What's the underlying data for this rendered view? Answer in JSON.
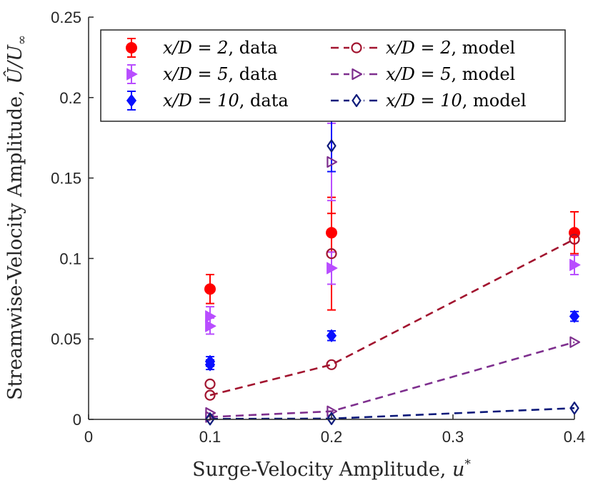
{
  "chart_data": {
    "type": "scatter",
    "xlabel": "Surge-Velocity Amplitude, u*",
    "xlabel_parts": {
      "text": "Surge-Velocity Amplitude, ",
      "symbol": "u",
      "sup": "*"
    },
    "ylabel": "Streamwise-Velocity Amplitude, Û/U∞",
    "ylabel_parts": {
      "text": "Streamwise-Velocity Amplitude, ",
      "symbol": "Û/U",
      "sub": "∞"
    },
    "xlim": [
      0,
      0.4
    ],
    "ylim": [
      0,
      0.25
    ],
    "xticks": [
      0,
      0.1,
      0.2,
      0.3,
      0.4
    ],
    "xtick_labels": [
      "0",
      "0.1",
      "0.2",
      "0.3",
      "0.4"
    ],
    "yticks": [
      0,
      0.05,
      0.1,
      0.15,
      0.2,
      0.25
    ],
    "ytick_labels": [
      "0",
      "0.05",
      "0.1",
      "0.15",
      "0.2",
      "0.25"
    ],
    "grid": false,
    "legend_position": "top-right",
    "series": [
      {
        "name": "x/D = 2, data",
        "legend_math": "x/D = 2",
        "legend_suffix": ", data",
        "kind": "data",
        "marker": "circle-filled",
        "color": "#ff0000",
        "points": [
          {
            "x": 0.1,
            "y": 0.081,
            "err": 0.009
          },
          {
            "x": 0.2,
            "y": 0.116,
            "err": 0.012
          },
          {
            "x": 0.4,
            "y": 0.116,
            "err": 0.013
          }
        ]
      },
      {
        "name": "x/D = 5, data",
        "legend_math": "x/D = 5",
        "legend_suffix": ", data",
        "kind": "data",
        "marker": "triangle-right-filled",
        "color": "#b84dff",
        "points": [
          {
            "x": 0.1,
            "y": 0.064,
            "err": 0.006
          },
          {
            "x": 0.1,
            "y": 0.058,
            "err": 0.005
          },
          {
            "x": 0.2,
            "y": 0.094,
            "err": 0.01
          },
          {
            "x": 0.4,
            "y": 0.096,
            "err": 0.006
          }
        ]
      },
      {
        "name": "x/D = 10, data",
        "legend_math": "x/D = 10",
        "legend_suffix": ", data",
        "kind": "data",
        "marker": "diamond-filled",
        "color": "#0a10ff",
        "points": [
          {
            "x": 0.1,
            "y": 0.036,
            "err": 0.003
          },
          {
            "x": 0.1,
            "y": 0.034,
            "err": 0.003
          },
          {
            "x": 0.2,
            "y": 0.052,
            "err": 0.003
          },
          {
            "x": 0.4,
            "y": 0.064,
            "err": 0.003
          }
        ]
      },
      {
        "name": "x/D = 2, model",
        "legend_math": "x/D = 2",
        "legend_suffix": ", model",
        "kind": "model",
        "marker": "circle-open",
        "color": "#a2142f",
        "line": [
          {
            "x": 0.1,
            "y": 0.015
          },
          {
            "x": 0.2,
            "y": 0.034
          },
          {
            "x": 0.4,
            "y": 0.112
          }
        ],
        "points": [
          {
            "x": 0.1,
            "y": 0.022
          },
          {
            "x": 0.1,
            "y": 0.015
          },
          {
            "x": 0.2,
            "y": 0.103
          },
          {
            "x": 0.2,
            "y": 0.034
          },
          {
            "x": 0.4,
            "y": 0.112
          }
        ]
      },
      {
        "name": "x/D = 5, model",
        "legend_math": "x/D = 5",
        "legend_suffix": ", model",
        "kind": "model",
        "marker": "triangle-right-open",
        "color": "#7e2f8e",
        "line": [
          {
            "x": 0.1,
            "y": 0.0015
          },
          {
            "x": 0.2,
            "y": 0.005
          },
          {
            "x": 0.4,
            "y": 0.048
          }
        ],
        "points": [
          {
            "x": 0.1,
            "y": 0.004
          },
          {
            "x": 0.1,
            "y": 0.0015
          },
          {
            "x": 0.2,
            "y": 0.16
          },
          {
            "x": 0.2,
            "y": 0.005
          },
          {
            "x": 0.4,
            "y": 0.048
          }
        ]
      },
      {
        "name": "x/D = 10, model",
        "legend_math": "x/D = 10",
        "legend_suffix": ", model",
        "kind": "model",
        "marker": "diamond-open",
        "color": "#0d1a7a",
        "line": [
          {
            "x": 0.1,
            "y": 0.0003
          },
          {
            "x": 0.2,
            "y": 0.0005
          },
          {
            "x": 0.4,
            "y": 0.007
          }
        ],
        "points": [
          {
            "x": 0.1,
            "y": 0.0003
          },
          {
            "x": 0.2,
            "y": 0.17
          },
          {
            "x": 0.2,
            "y": 0.0005
          },
          {
            "x": 0.4,
            "y": 0.007
          }
        ]
      }
    ],
    "extra_errorbars": [
      {
        "x": 0.2,
        "y": 0.103,
        "err": 0.035,
        "color": "#ff0000"
      },
      {
        "x": 0.2,
        "y": 0.16,
        "err": 0.024,
        "color": "#b84dff"
      },
      {
        "x": 0.2,
        "y": 0.17,
        "err": 0.016,
        "color": "#0a10ff"
      }
    ]
  }
}
